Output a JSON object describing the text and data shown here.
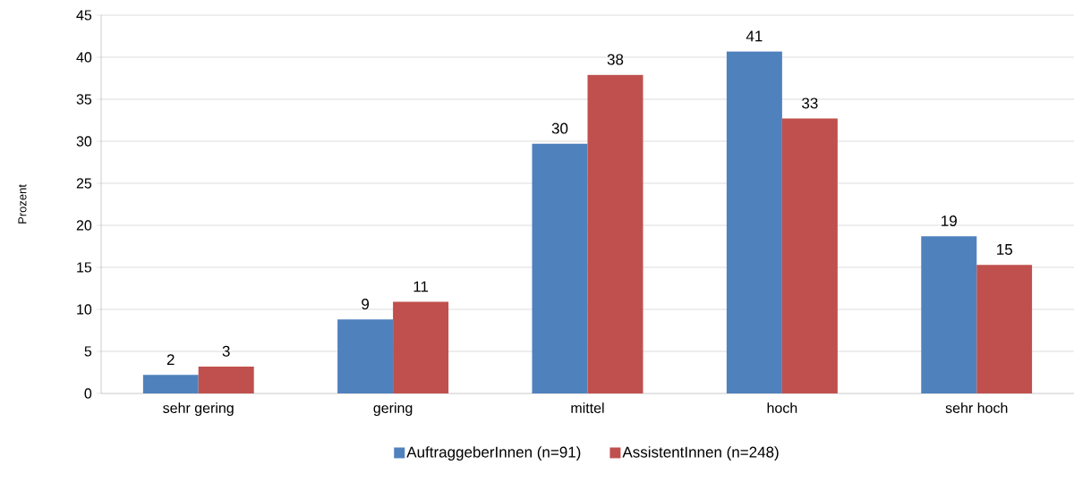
{
  "chart_data": {
    "type": "bar",
    "ylabel": "Prozent",
    "categories": [
      "sehr gering",
      "gering",
      "mittel",
      "hoch",
      "sehr hoch"
    ],
    "series": [
      {
        "name": "AuftraggeberInnen (n=91)",
        "color": "#4f81bd",
        "values": [
          2.2,
          8.8,
          29.7,
          40.7,
          18.7
        ],
        "value_labels": [
          "2",
          "9",
          "30",
          "41",
          "19"
        ]
      },
      {
        "name": "AssistentInnen (n=248)",
        "color": "#c0504d",
        "values": [
          3.2,
          10.9,
          37.9,
          32.7,
          15.3
        ],
        "value_labels": [
          "3",
          "11",
          "38",
          "33",
          "15"
        ]
      }
    ],
    "ylim": [
      0,
      45
    ],
    "yticks": [
      0,
      5,
      10,
      15,
      20,
      25,
      30,
      35,
      40,
      45
    ],
    "grid": "y",
    "legend": "bottom"
  }
}
